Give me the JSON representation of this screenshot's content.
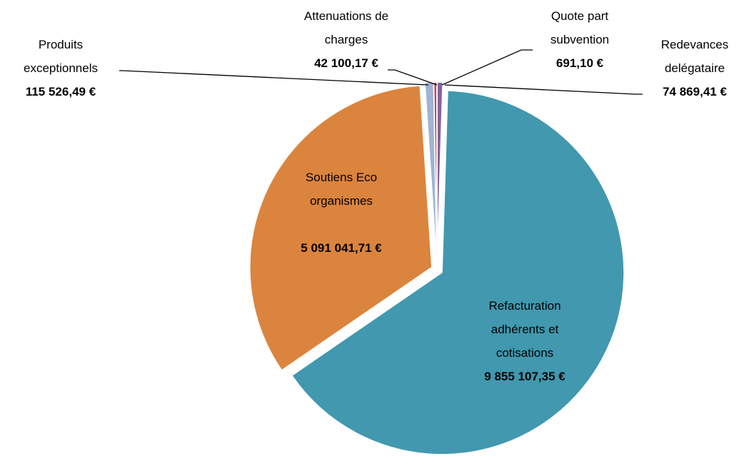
{
  "chart_data": {
    "type": "pie",
    "categories": [
      "Quote part subvention",
      "Redevances delégataire",
      "Refacturation adhérents et cotisations",
      "Soutiens Eco organismes",
      "Produits exceptionnels",
      "Attenuations de charges"
    ],
    "values": [
      691.1,
      74869.41,
      9855107.35,
      5091041.71,
      115526.49,
      42100.17
    ],
    "value_labels": [
      "691,10 €",
      "74 869,41 €",
      "9 855 107,35 €",
      "5 091 041,71 €",
      "115 526,49 €",
      "42 100,17 €"
    ],
    "colors": [
      "#9bbb59",
      "#8064a2",
      "#4198af",
      "#db843d",
      "#9fb3d3",
      "#c0504d"
    ]
  }
}
